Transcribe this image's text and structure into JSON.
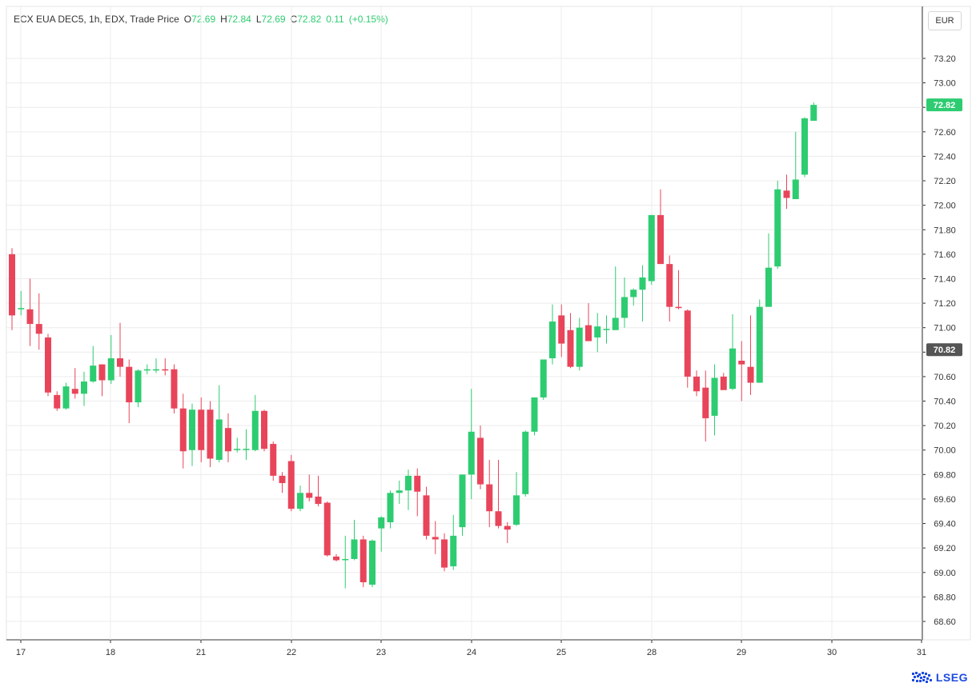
{
  "legend": {
    "instrument": "ECX EUA DEC5, 1h, EDX, Trade Price",
    "open_label": "O",
    "open": "72.69",
    "high_label": "H",
    "high": "72.84",
    "low_label": "L",
    "low": "72.69",
    "close_label": "C",
    "close": "72.82",
    "change": "0.11",
    "change_pct": "(+0.15%)"
  },
  "currency": "EUR",
  "logo_text": "LSEG",
  "colors": {
    "up": "#2ecc71",
    "down": "#e8455b",
    "grid": "#ececec",
    "axis": "#333333",
    "price_tag": "#2ecc71",
    "ref_tag": "#555555"
  },
  "chart_data": {
    "type": "candlestick",
    "yticks": [
      "68.60",
      "68.80",
      "69.00",
      "69.20",
      "69.40",
      "69.60",
      "69.80",
      "70.00",
      "70.20",
      "70.40",
      "70.60",
      "70.80",
      "71.00",
      "71.20",
      "71.40",
      "71.60",
      "71.80",
      "72.00",
      "72.20",
      "72.40",
      "72.60",
      "72.80",
      "73.00",
      "73.20"
    ],
    "ylim": [
      68.4,
      73.5
    ],
    "xticks": [
      "17",
      "18",
      "21",
      "22",
      "23",
      "24",
      "25",
      "28",
      "29",
      "30",
      "31"
    ],
    "last_price_tag": "72.82",
    "reference_tag": "70.82",
    "candles": [
      [
        71.6,
        71.65,
        70.98,
        71.1
      ],
      [
        71.15,
        71.3,
        71.1,
        71.16
      ],
      [
        71.15,
        71.4,
        70.85,
        71.03
      ],
      [
        71.03,
        71.28,
        70.82,
        70.95
      ],
      [
        70.92,
        70.95,
        70.44,
        70.47
      ],
      [
        70.45,
        70.48,
        70.32,
        70.34
      ],
      [
        70.34,
        70.55,
        70.33,
        70.52
      ],
      [
        70.5,
        70.67,
        70.42,
        70.46
      ],
      [
        70.46,
        70.64,
        70.36,
        70.56
      ],
      [
        70.56,
        70.85,
        70.55,
        70.69
      ],
      [
        70.7,
        70.7,
        70.44,
        70.57
      ],
      [
        70.57,
        70.94,
        70.54,
        70.75
      ],
      [
        70.75,
        71.04,
        70.6,
        70.68
      ],
      [
        70.68,
        70.74,
        70.22,
        70.39
      ],
      [
        70.39,
        70.66,
        70.35,
        70.65
      ],
      [
        70.65,
        70.7,
        70.62,
        70.66
      ],
      [
        70.65,
        70.75,
        70.63,
        70.66
      ],
      [
        70.66,
        70.75,
        70.61,
        70.65
      ],
      [
        70.66,
        70.7,
        70.3,
        70.34
      ],
      [
        70.34,
        70.46,
        69.85,
        69.99
      ],
      [
        70.0,
        70.38,
        69.87,
        70.33
      ],
      [
        70.33,
        70.43,
        69.9,
        70.0
      ],
      [
        70.33,
        70.4,
        69.86,
        69.93
      ],
      [
        69.92,
        70.53,
        69.9,
        70.25
      ],
      [
        70.18,
        70.3,
        69.9,
        69.99
      ],
      [
        70.0,
        70.1,
        69.98,
        70.01
      ],
      [
        70.0,
        70.17,
        69.92,
        70.01
      ],
      [
        70.0,
        70.45,
        69.99,
        70.32
      ],
      [
        70.32,
        70.33,
        69.99,
        70.01
      ],
      [
        70.05,
        70.07,
        69.75,
        69.79
      ],
      [
        69.79,
        69.82,
        69.65,
        69.73
      ],
      [
        69.91,
        69.96,
        69.5,
        69.52
      ],
      [
        69.52,
        69.71,
        69.5,
        69.65
      ],
      [
        69.65,
        69.8,
        69.58,
        69.61
      ],
      [
        69.62,
        69.79,
        69.54,
        69.56
      ],
      [
        69.57,
        69.58,
        69.13,
        69.14
      ],
      [
        69.13,
        69.15,
        69.09,
        69.1
      ],
      [
        69.11,
        69.3,
        68.87,
        69.11
      ],
      [
        69.11,
        69.43,
        69.1,
        69.27
      ],
      [
        69.27,
        69.3,
        68.88,
        68.92
      ],
      [
        68.9,
        69.27,
        68.88,
        69.26
      ],
      [
        69.36,
        69.46,
        69.17,
        69.45
      ],
      [
        69.41,
        69.67,
        69.36,
        69.65
      ],
      [
        69.65,
        69.75,
        69.56,
        69.67
      ],
      [
        69.67,
        69.84,
        69.51,
        69.79
      ],
      [
        69.79,
        69.85,
        69.46,
        69.66
      ],
      [
        69.63,
        69.7,
        69.27,
        69.3
      ],
      [
        69.29,
        69.42,
        69.15,
        69.27
      ],
      [
        69.27,
        69.32,
        69.01,
        69.04
      ],
      [
        69.05,
        69.47,
        69.02,
        69.3
      ],
      [
        69.37,
        69.8,
        69.3,
        69.8
      ],
      [
        69.8,
        70.5,
        69.6,
        70.15
      ],
      [
        70.1,
        70.2,
        69.68,
        69.72
      ],
      [
        69.72,
        69.92,
        69.37,
        69.5
      ],
      [
        69.5,
        69.92,
        69.36,
        69.38
      ],
      [
        69.38,
        69.41,
        69.24,
        69.35
      ],
      [
        69.39,
        69.82,
        69.38,
        69.63
      ],
      [
        69.64,
        70.16,
        69.62,
        70.15
      ],
      [
        70.15,
        70.43,
        70.12,
        70.43
      ],
      [
        70.43,
        70.73,
        70.41,
        70.74
      ],
      [
        70.75,
        71.19,
        70.7,
        71.05
      ],
      [
        71.1,
        71.19,
        70.76,
        70.87
      ],
      [
        70.98,
        71.12,
        70.67,
        70.68
      ],
      [
        70.68,
        71.08,
        70.65,
        71.0
      ],
      [
        71.02,
        71.2,
        70.9,
        70.89
      ],
      [
        70.92,
        71.12,
        70.8,
        71.01
      ],
      [
        70.98,
        71.1,
        70.87,
        70.99
      ],
      [
        70.98,
        71.5,
        70.98,
        71.08
      ],
      [
        71.08,
        71.41,
        71.0,
        71.25
      ],
      [
        71.25,
        71.32,
        71.18,
        71.31
      ],
      [
        71.31,
        71.51,
        71.05,
        71.41
      ],
      [
        71.38,
        71.92,
        71.35,
        71.92
      ],
      [
        71.92,
        72.13,
        71.52,
        71.52
      ],
      [
        71.52,
        71.59,
        71.05,
        71.17
      ],
      [
        71.17,
        71.47,
        71.15,
        71.16
      ],
      [
        71.14,
        71.15,
        70.51,
        70.6
      ],
      [
        70.6,
        70.65,
        70.44,
        70.48
      ],
      [
        70.51,
        70.65,
        70.07,
        70.26
      ],
      [
        70.28,
        70.7,
        70.12,
        70.59
      ],
      [
        70.6,
        70.63,
        70.5,
        70.49
      ],
      [
        70.5,
        71.11,
        70.49,
        70.83
      ],
      [
        70.73,
        70.89,
        70.4,
        70.7
      ],
      [
        70.68,
        71.1,
        70.45,
        70.55
      ],
      [
        70.55,
        71.23,
        70.55,
        71.17
      ],
      [
        71.17,
        71.77,
        71.17,
        71.49
      ],
      [
        71.5,
        72.2,
        71.48,
        72.13
      ],
      [
        72.12,
        72.25,
        71.97,
        72.06
      ],
      [
        72.05,
        72.6,
        72.05,
        72.21
      ],
      [
        72.25,
        72.72,
        72.23,
        72.71
      ],
      [
        72.69,
        72.84,
        72.69,
        72.82
      ]
    ]
  }
}
